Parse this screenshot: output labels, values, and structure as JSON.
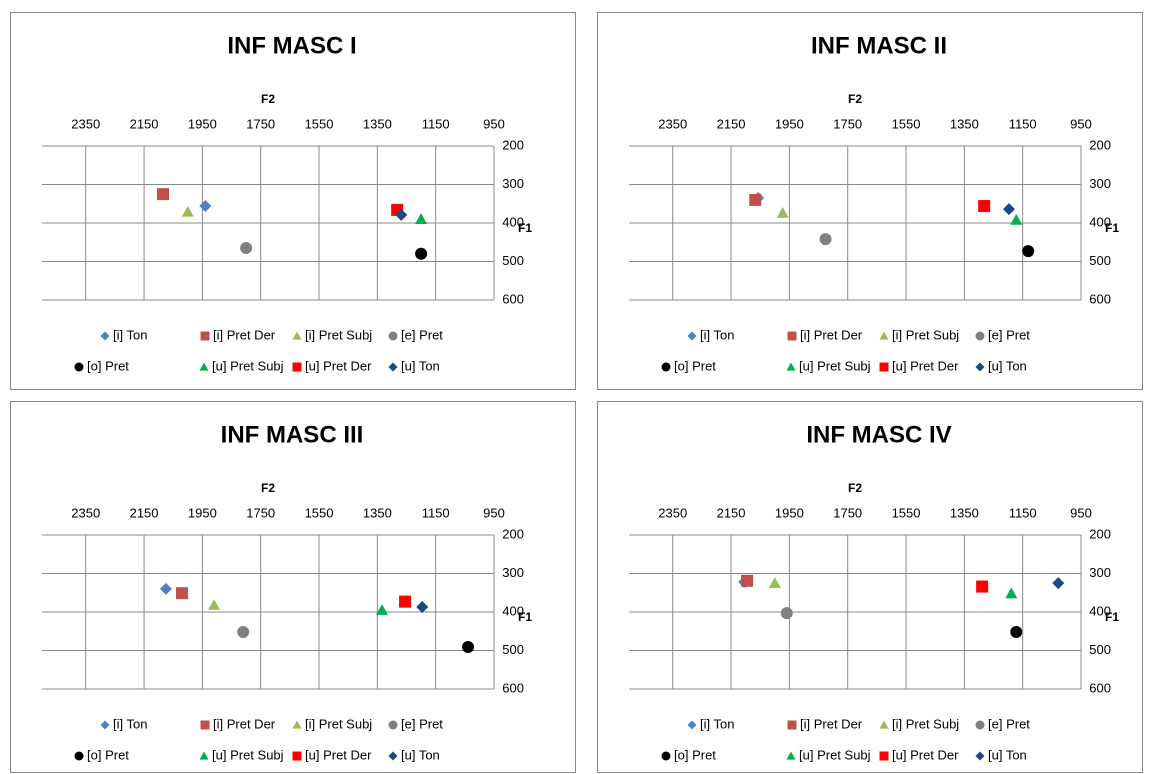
{
  "chart_data": [
    {
      "type": "scatter",
      "title": "INF MASC I",
      "xlabel": "F2",
      "ylabel": "F1",
      "xlim": [
        2500,
        950
      ],
      "ylim": [
        600,
        200
      ],
      "xticks": [
        2350,
        2150,
        1950,
        1750,
        1550,
        1350,
        1150,
        950
      ],
      "yticks": [
        200,
        300,
        400,
        500,
        600
      ],
      "grid": true,
      "series": [
        {
          "name": "[i] Ton",
          "color": "#4f81bd",
          "marker": "diamond",
          "x": [
            1940
          ],
          "values": [
            356
          ]
        },
        {
          "name": "[i] Pret Der",
          "color": "#c0504d",
          "marker": "square",
          "x": [
            2085
          ],
          "values": [
            325
          ]
        },
        {
          "name": "[i] Pret Subj",
          "color": "#9bbb59",
          "marker": "triangle",
          "x": [
            2000
          ],
          "values": [
            371
          ]
        },
        {
          "name": "[e] Pret",
          "color": "#808080",
          "marker": "circle",
          "x": [
            1800
          ],
          "values": [
            465
          ]
        },
        {
          "name": "[o] Pret",
          "color": "#000000",
          "marker": "circle",
          "x": [
            1200
          ],
          "values": [
            480
          ]
        },
        {
          "name": "[u] Pret Subj",
          "color": "#00b050",
          "marker": "triangle",
          "x": [
            1200
          ],
          "values": [
            390
          ]
        },
        {
          "name": "[u] Pret Der",
          "color": "#ff0000",
          "marker": "square",
          "x": [
            1282
          ],
          "values": [
            366
          ]
        },
        {
          "name": "[u] Ton",
          "color": "#1f497d",
          "marker": "diamond",
          "x": [
            1268
          ],
          "values": [
            379
          ]
        }
      ]
    },
    {
      "type": "scatter",
      "title": "INF MASC II",
      "xlabel": "F2",
      "ylabel": "F1",
      "xlim": [
        2500,
        950
      ],
      "ylim": [
        600,
        200
      ],
      "xticks": [
        2350,
        2150,
        1950,
        1750,
        1550,
        1350,
        1150,
        950
      ],
      "yticks": [
        200,
        300,
        400,
        500,
        600
      ],
      "grid": true,
      "series": [
        {
          "name": "[i] Ton",
          "color": "#4f81bd",
          "marker": "diamond",
          "x": [
            2057
          ],
          "values": [
            335
          ]
        },
        {
          "name": "[i] Pret Der",
          "color": "#c0504d",
          "marker": "square",
          "x": [
            2067
          ],
          "values": [
            340
          ]
        },
        {
          "name": "[i] Pret Subj",
          "color": "#9bbb59",
          "marker": "triangle",
          "x": [
            1973
          ],
          "values": [
            374
          ]
        },
        {
          "name": "[e] Pret",
          "color": "#808080",
          "marker": "circle",
          "x": [
            1826
          ],
          "values": [
            442
          ]
        },
        {
          "name": "[o] Pret",
          "color": "#000000",
          "marker": "circle",
          "x": [
            1131
          ],
          "values": [
            473
          ]
        },
        {
          "name": "[u] Pret Subj",
          "color": "#00b050",
          "marker": "triangle",
          "x": [
            1172
          ],
          "values": [
            392
          ]
        },
        {
          "name": "[u] Pret Der",
          "color": "#ff0000",
          "marker": "square",
          "x": [
            1282
          ],
          "values": [
            356
          ]
        },
        {
          "name": "[u] Ton",
          "color": "#1f497d",
          "marker": "diamond",
          "x": [
            1197
          ],
          "values": [
            364
          ]
        }
      ]
    },
    {
      "type": "scatter",
      "title": "INF MASC III",
      "xlabel": "F2",
      "ylabel": "F1",
      "xlim": [
        2500,
        950
      ],
      "ylim": [
        600,
        200
      ],
      "xticks": [
        2350,
        2150,
        1950,
        1750,
        1550,
        1350,
        1150,
        950
      ],
      "yticks": [
        200,
        300,
        400,
        500,
        600
      ],
      "grid": true,
      "series": [
        {
          "name": "[i] Ton",
          "color": "#4f81bd",
          "marker": "diamond",
          "x": [
            2075
          ],
          "values": [
            340
          ]
        },
        {
          "name": "[i] Pret Der",
          "color": "#c0504d",
          "marker": "square",
          "x": [
            2020
          ],
          "values": [
            351
          ]
        },
        {
          "name": "[i] Pret Subj",
          "color": "#9bbb59",
          "marker": "triangle",
          "x": [
            1910
          ],
          "values": [
            382
          ]
        },
        {
          "name": "[e] Pret",
          "color": "#808080",
          "marker": "circle",
          "x": [
            1810
          ],
          "values": [
            452
          ]
        },
        {
          "name": "[o] Pret",
          "color": "#000000",
          "marker": "circle",
          "x": [
            1039
          ],
          "values": [
            491
          ]
        },
        {
          "name": "[u] Pret Subj",
          "color": "#00b050",
          "marker": "triangle",
          "x": [
            1334
          ],
          "values": [
            395
          ]
        },
        {
          "name": "[u] Pret Der",
          "color": "#ff0000",
          "marker": "square",
          "x": [
            1255
          ],
          "values": [
            373
          ]
        },
        {
          "name": "[u] Ton",
          "color": "#1f497d",
          "marker": "diamond",
          "x": [
            1196
          ],
          "values": [
            387
          ]
        }
      ]
    },
    {
      "type": "scatter",
      "title": "INF MASC IV",
      "xlabel": "F2",
      "ylabel": "F1",
      "xlim": [
        2500,
        950
      ],
      "ylim": [
        600,
        200
      ],
      "xticks": [
        2350,
        2150,
        1950,
        1750,
        1550,
        1350,
        1150,
        950
      ],
      "yticks": [
        200,
        300,
        400,
        500,
        600
      ],
      "grid": true,
      "series": [
        {
          "name": "[i] Ton",
          "color": "#4f81bd",
          "marker": "diamond",
          "x": [
            2105
          ],
          "values": [
            322
          ]
        },
        {
          "name": "[i] Pret Der",
          "color": "#c0504d",
          "marker": "square",
          "x": [
            2095
          ],
          "values": [
            319
          ]
        },
        {
          "name": "[i] Pret Subj",
          "color": "#9bbb59",
          "marker": "triangle",
          "x": [
            2000
          ],
          "values": [
            325
          ]
        },
        {
          "name": "[e] Pret",
          "color": "#808080",
          "marker": "circle",
          "x": [
            1959
          ],
          "values": [
            403
          ]
        },
        {
          "name": "[o] Pret",
          "color": "#000000",
          "marker": "circle",
          "x": [
            1172
          ],
          "values": [
            452
          ]
        },
        {
          "name": "[u] Pret Subj",
          "color": "#00b050",
          "marker": "triangle",
          "x": [
            1189
          ],
          "values": [
            352
          ]
        },
        {
          "name": "[u] Pret Der",
          "color": "#ff0000",
          "marker": "square",
          "x": [
            1289
          ],
          "values": [
            334
          ]
        },
        {
          "name": "[u] Ton",
          "color": "#1f497d",
          "marker": "diamond",
          "x": [
            1028
          ],
          "values": [
            325
          ]
        }
      ]
    }
  ]
}
